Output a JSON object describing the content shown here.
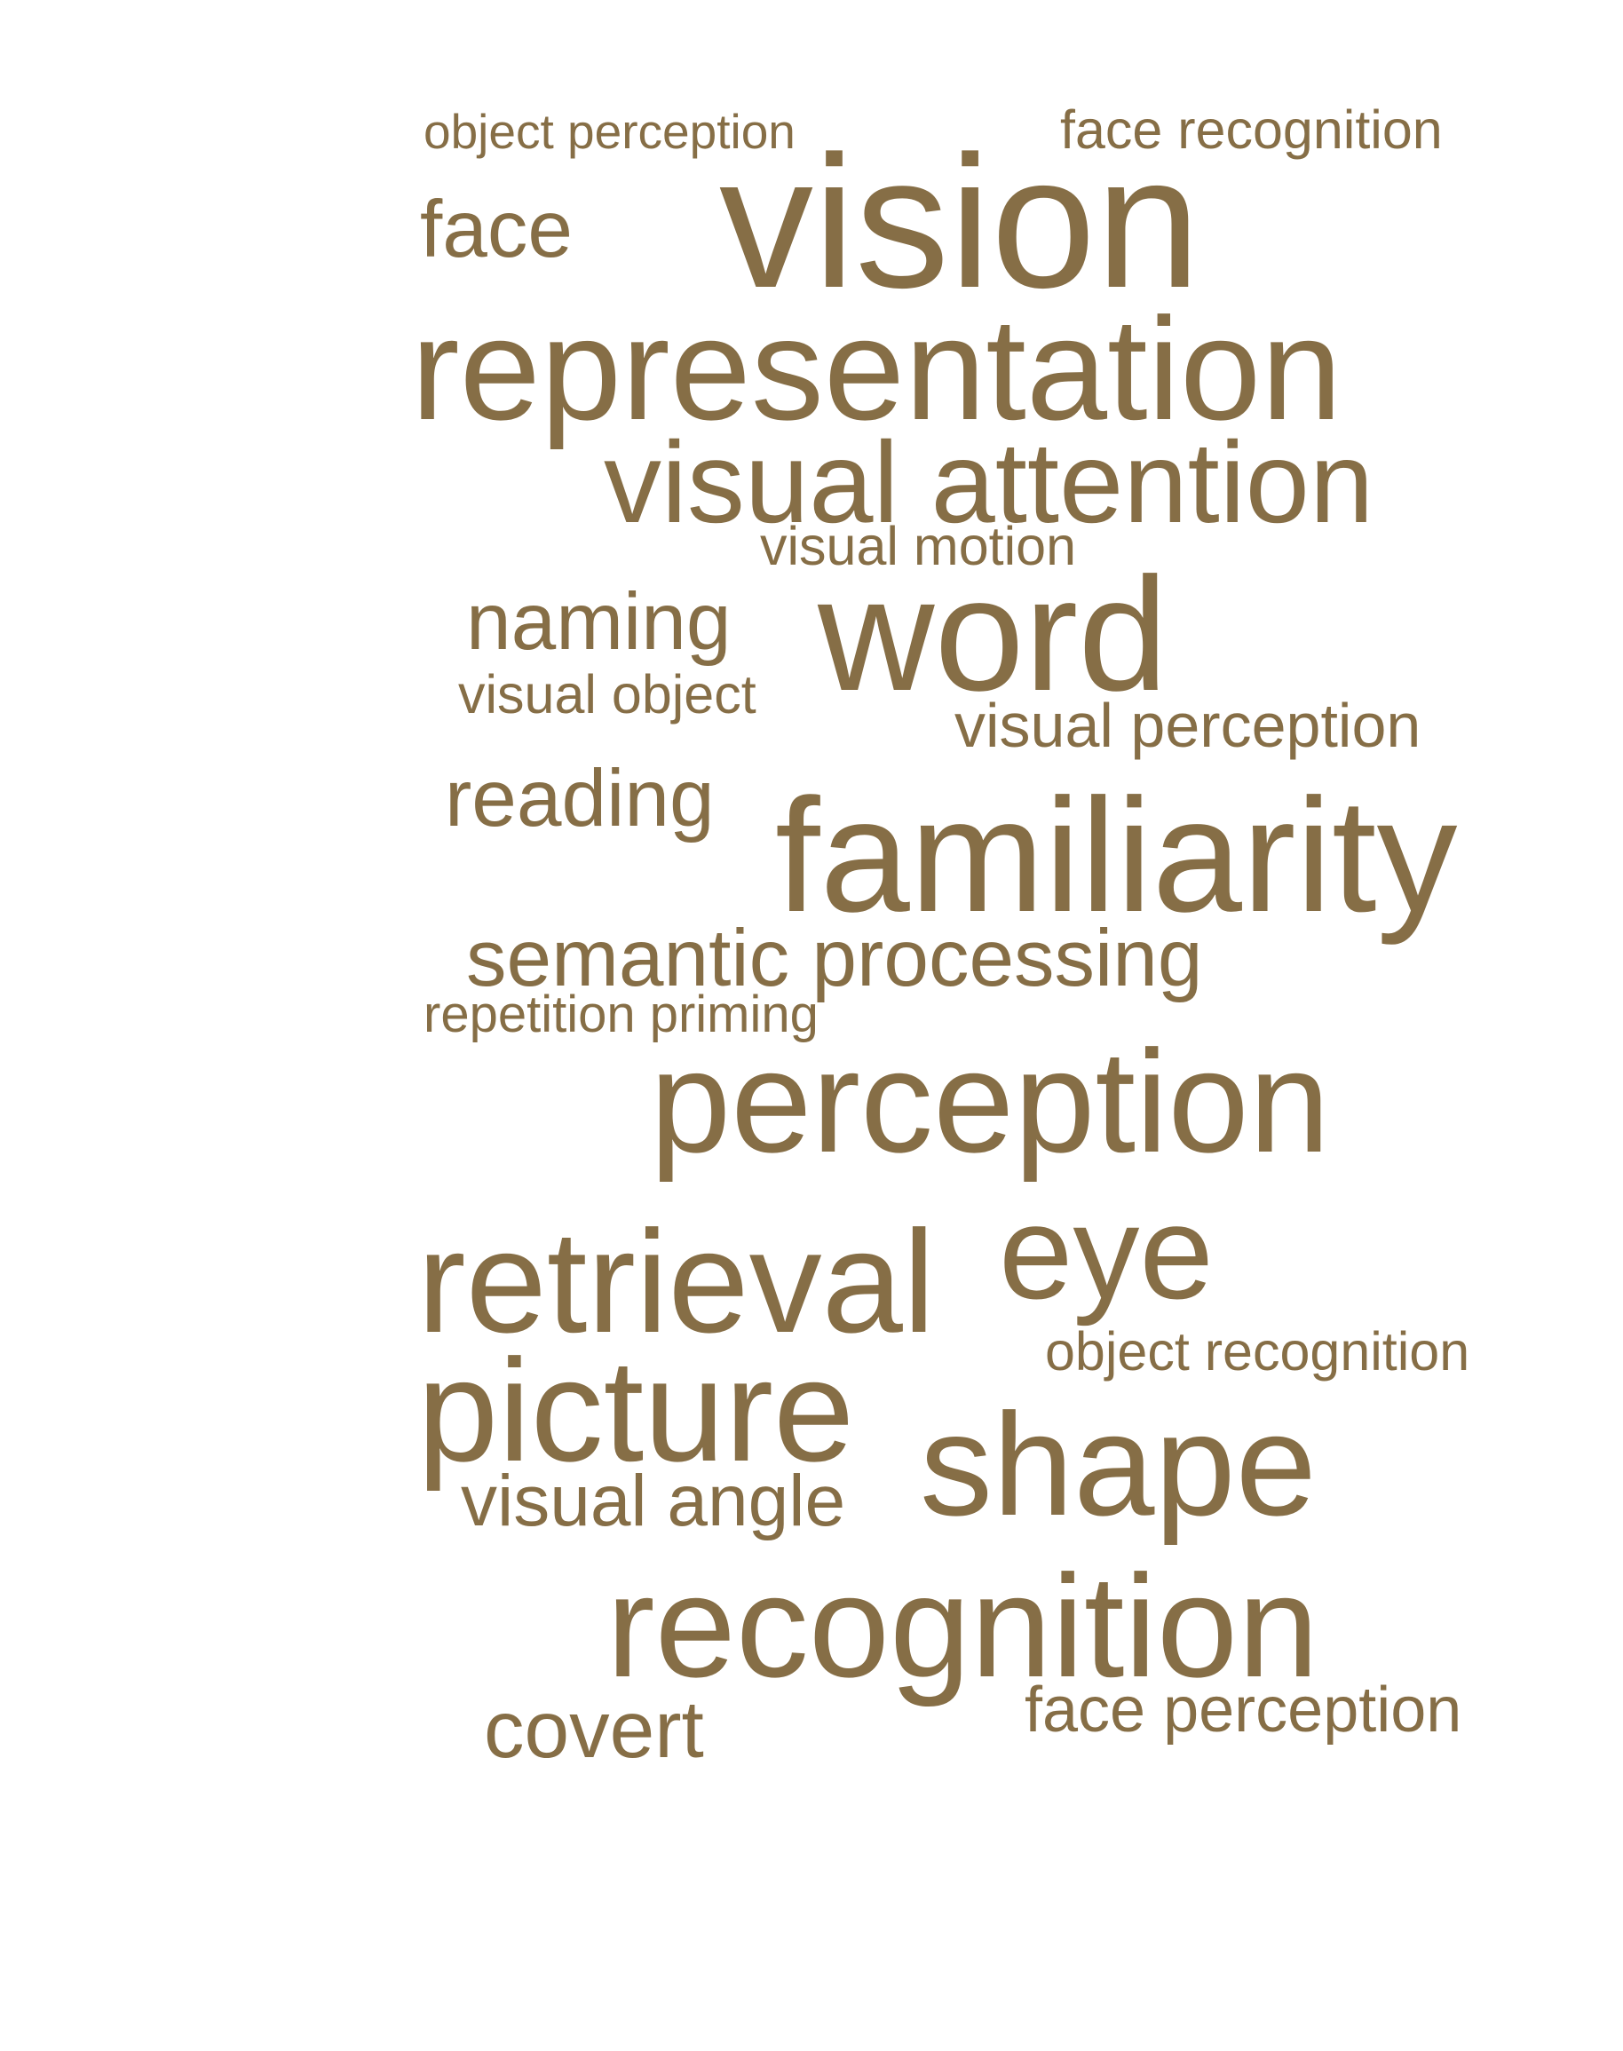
{
  "text_color": "#866e46",
  "background_color": "#ffffff",
  "words": [
    {
      "text": "object perception"
    },
    {
      "text": "face recognition"
    },
    {
      "text": "face"
    },
    {
      "text": "vision"
    },
    {
      "text": "representation"
    },
    {
      "text": "visual attention"
    },
    {
      "text": "visual motion"
    },
    {
      "text": "naming"
    },
    {
      "text": "word"
    },
    {
      "text": "visual object"
    },
    {
      "text": "visual perception"
    },
    {
      "text": "reading"
    },
    {
      "text": "familiarity"
    },
    {
      "text": "semantic processing"
    },
    {
      "text": "repetition priming"
    },
    {
      "text": "perception"
    },
    {
      "text": "retrieval"
    },
    {
      "text": "eye"
    },
    {
      "text": "object recognition"
    },
    {
      "text": "picture"
    },
    {
      "text": "shape"
    },
    {
      "text": "visual angle"
    },
    {
      "text": "recognition"
    },
    {
      "text": "face perception"
    },
    {
      "text": "covert"
    }
  ]
}
